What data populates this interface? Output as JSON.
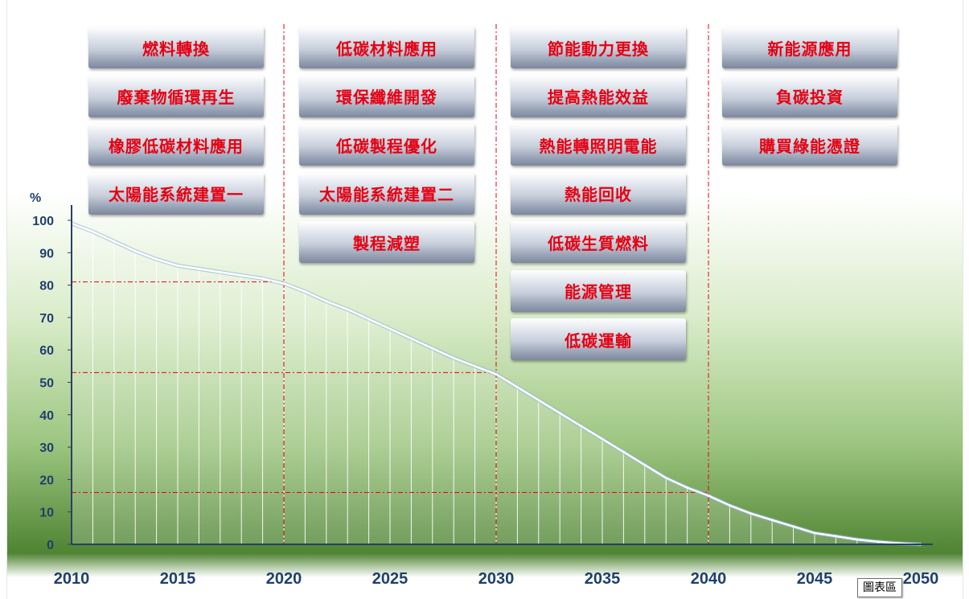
{
  "chart_data": {
    "type": "area",
    "title": "",
    "xlabel": "",
    "ylabel": "%",
    "xlim": [
      2010,
      2050
    ],
    "ylim": [
      0,
      100
    ],
    "x_ticks": [
      2010,
      2015,
      2020,
      2025,
      2030,
      2035,
      2040,
      2045,
      2050
    ],
    "y_ticks": [
      0,
      10,
      20,
      30,
      40,
      50,
      60,
      70,
      80,
      90,
      100
    ],
    "series": [
      {
        "x": [
          2010,
          2011,
          2012,
          2013,
          2014,
          2015,
          2016,
          2017,
          2018,
          2019,
          2020,
          2021,
          2022,
          2023,
          2024,
          2025,
          2026,
          2027,
          2028,
          2029,
          2030,
          2031,
          2032,
          2033,
          2034,
          2035,
          2036,
          2037,
          2038,
          2039,
          2040,
          2041,
          2042,
          2043,
          2044,
          2045,
          2046,
          2047,
          2048,
          2049,
          2050
        ],
        "values": [
          99,
          96.5,
          93.5,
          90.5,
          88,
          86,
          85,
          84,
          83,
          82,
          80.5,
          78,
          75,
          72.5,
          69.5,
          66.5,
          63.5,
          60.5,
          57.5,
          55,
          52.5,
          48.5,
          44.5,
          40.5,
          36.5,
          32.5,
          28.5,
          24.5,
          20.5,
          17.5,
          15,
          12,
          9.5,
          7.5,
          5.5,
          3.5,
          2.5,
          1.5,
          0.8,
          0.3,
          0
        ]
      }
    ],
    "reference_points": [
      {
        "x": 2020,
        "y": 81
      },
      {
        "x": 2030,
        "y": 53
      },
      {
        "x": 2040,
        "y": 16
      }
    ],
    "colors": {
      "gradient_top": "#ffffff",
      "gradient_bottom": "#5a8c3a",
      "guide_line": "#e60012",
      "line": "#ffffff",
      "axis_text": "#1f3f6e",
      "axis_line": "#2b3f66",
      "label_text": "#e60012"
    },
    "annotation_groups": [
      {
        "labels": [
          "燃料轉換",
          "廢棄物循環再生",
          "橡膠低碳材料應用",
          "太陽能系統建置一"
        ]
      },
      {
        "labels": [
          "低碳材料應用",
          "環保纖維開發",
          "低碳製程優化",
          "太陽能系統建置二",
          "製程減塑"
        ]
      },
      {
        "labels": [
          "節能動力更換",
          "提高熱能效益",
          "熱能轉照明電能",
          "熱能回收",
          "低碳生質燃料",
          "能源管理",
          "低碳運輸"
        ]
      },
      {
        "labels": [
          "新能源應用",
          "負碳投資",
          "購買綠能憑證"
        ]
      }
    ]
  },
  "tooltip": "圖表區"
}
